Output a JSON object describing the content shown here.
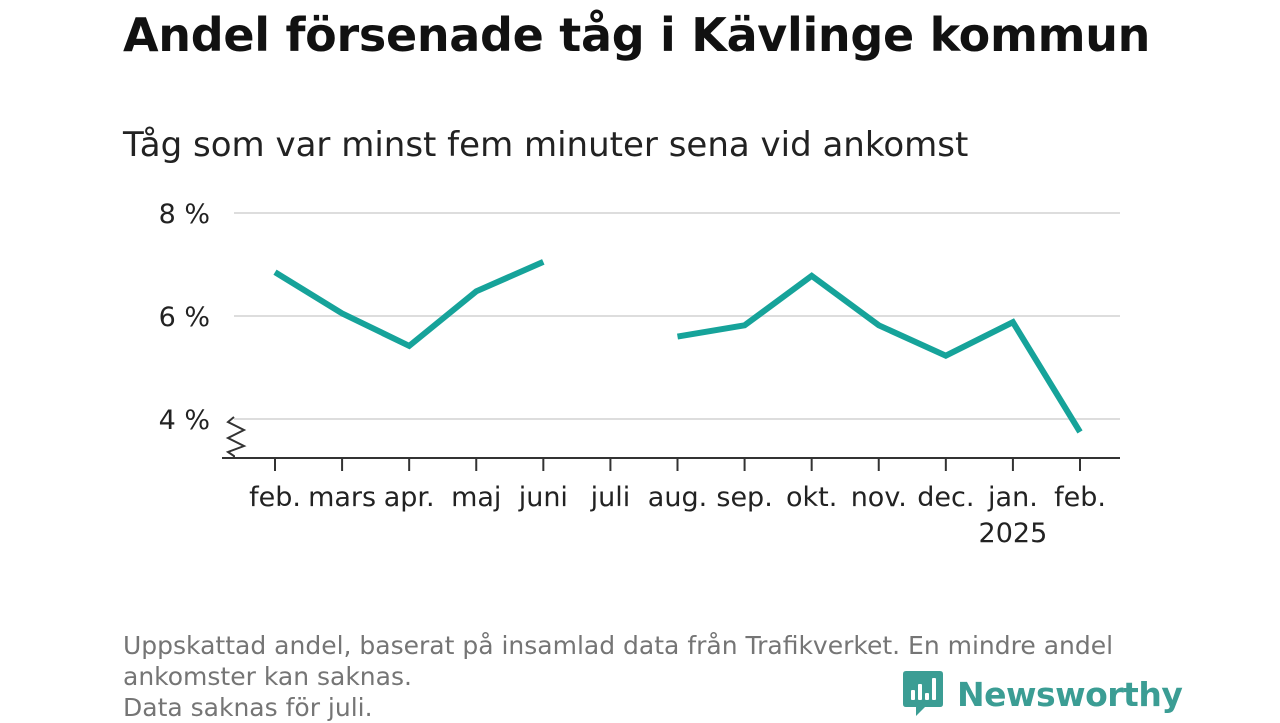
{
  "title": "Andel försenade tåg i Kävlinge kommun",
  "subtitle": "Tåg som var minst fem minuter sena vid ankomst",
  "footnote": [
    "Uppskattad andel, baserat på insamlad data från Trafikverket. En mindre andel",
    "ankomster kan saknas.",
    "Data saknas för juli."
  ],
  "brand": {
    "name": "Newsworthy",
    "icon": "newsworthy-logo-icon",
    "color": "#3b9d94"
  },
  "chart_data": {
    "type": "line",
    "title": "Andel försenade tåg i Kävlinge kommun",
    "subtitle": "Tåg som var minst fem minuter sena vid ankomst",
    "categories": [
      "feb.",
      "mars",
      "apr.",
      "maj",
      "juni",
      "juli",
      "aug.",
      "sep.",
      "okt.",
      "nov.",
      "dec.",
      "jan.",
      "feb."
    ],
    "year_label": {
      "text": "2025",
      "under_index": 11
    },
    "series": [
      {
        "values": [
          6.85,
          6.05,
          5.42,
          6.48,
          7.05,
          null,
          5.6,
          5.82,
          6.78,
          5.82,
          5.23,
          5.88,
          3.75
        ]
      }
    ],
    "ylim": [
      3.2,
      8.2
    ],
    "yticks": [
      4,
      6,
      8
    ],
    "ytick_labels": [
      "4 %",
      "6 %",
      "8 %"
    ],
    "axis_break": true,
    "grid": true,
    "colors": {
      "line": "#16a39a",
      "grid": "#dddddd",
      "axis": "#333333"
    }
  }
}
